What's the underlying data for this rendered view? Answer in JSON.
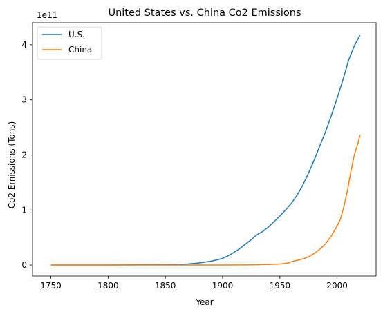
{
  "chart_data": {
    "type": "line",
    "title": "United States vs. China Co2 Emissions",
    "xlabel": "Year",
    "ylabel": "Co2 Emissions (Tons)",
    "y_offset_label": "1e11",
    "xlim": [
      1734,
      2034
    ],
    "ylim": [
      -0.2,
      4.4
    ],
    "y_unit_multiplier": 100000000000,
    "x_ticks": [
      1750,
      1800,
      1850,
      1900,
      1950,
      2000
    ],
    "x_tick_labels": [
      "1750",
      "1800",
      "1850",
      "1900",
      "1950",
      "2000"
    ],
    "y_ticks": [
      0,
      1,
      2,
      3,
      4
    ],
    "y_tick_labels": [
      "0",
      "1",
      "2",
      "3",
      "4"
    ],
    "legend_position": "top-left",
    "grid": false,
    "series": [
      {
        "name": "U.S.",
        "color": "#1f77b4",
        "x": [
          1750,
          1800,
          1850,
          1860,
          1870,
          1880,
          1890,
          1900,
          1905,
          1910,
          1915,
          1920,
          1925,
          1930,
          1935,
          1940,
          1945,
          1950,
          1955,
          1960,
          1965,
          1970,
          1975,
          1980,
          1985,
          1990,
          1995,
          2000,
          2005,
          2010,
          2015,
          2020
        ],
        "y": [
          0,
          0,
          0.005,
          0.01,
          0.02,
          0.04,
          0.07,
          0.12,
          0.17,
          0.23,
          0.3,
          0.38,
          0.46,
          0.55,
          0.61,
          0.69,
          0.79,
          0.89,
          1.0,
          1.12,
          1.27,
          1.45,
          1.67,
          1.91,
          2.17,
          2.43,
          2.72,
          3.03,
          3.36,
          3.72,
          3.98,
          4.18
        ]
      },
      {
        "name": "China",
        "color": "#ff7f0e",
        "x": [
          1750,
          1850,
          1900,
          1920,
          1930,
          1940,
          1950,
          1955,
          1958,
          1960,
          1965,
          1970,
          1975,
          1980,
          1985,
          1990,
          1995,
          2000,
          2003,
          2006,
          2009,
          2012,
          2015,
          2018,
          2020
        ],
        "y": [
          0,
          0,
          0,
          0.002,
          0.005,
          0.01,
          0.02,
          0.03,
          0.04,
          0.06,
          0.085,
          0.11,
          0.15,
          0.21,
          0.29,
          0.39,
          0.53,
          0.71,
          0.84,
          1.07,
          1.35,
          1.7,
          2.0,
          2.2,
          2.36
        ]
      }
    ]
  }
}
